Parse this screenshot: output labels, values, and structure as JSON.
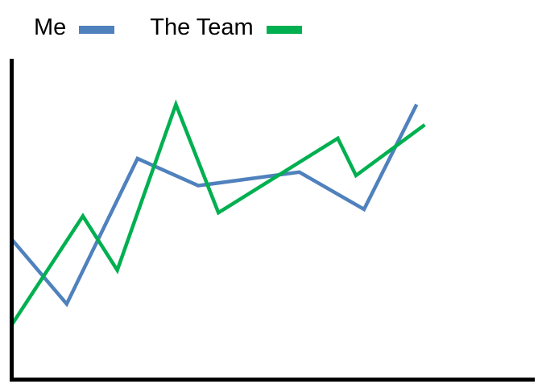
{
  "chart_data": {
    "type": "line",
    "title": "",
    "xlabel": "",
    "ylabel": "",
    "x": [
      0,
      1,
      2,
      3,
      4,
      5,
      6,
      7,
      8,
      9,
      10,
      11,
      12,
      13
    ],
    "ylim": [
      0,
      100
    ],
    "grid": false,
    "legend": "top-left",
    "series": [
      {
        "name": "Me",
        "color": "#4f81bd",
        "points": [
          [
            0,
            41
          ],
          [
            1.35,
            22
          ],
          [
            3.1,
            65
          ],
          [
            4.6,
            57
          ],
          [
            7.1,
            61
          ],
          [
            8.7,
            50
          ],
          [
            10,
            81
          ]
        ]
      },
      {
        "name": "The Team",
        "color": "#00b050",
        "points": [
          [
            0,
            16
          ],
          [
            1.75,
            48
          ],
          [
            2.6,
            32
          ],
          [
            4.05,
            81
          ],
          [
            5.1,
            49
          ],
          [
            8.05,
            71
          ],
          [
            8.5,
            60
          ],
          [
            10.2,
            75
          ]
        ]
      }
    ]
  }
}
